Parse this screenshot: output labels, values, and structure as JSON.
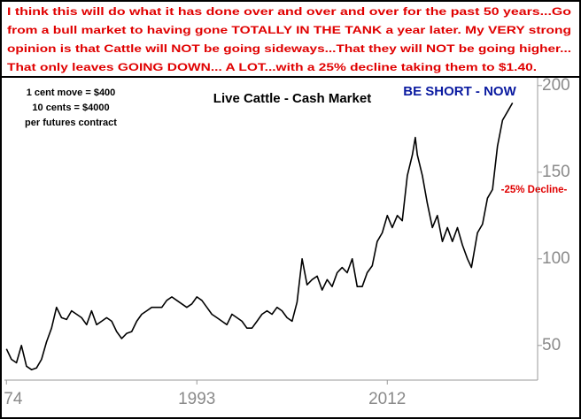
{
  "chart_data": {
    "type": "line",
    "headline": [
      "I think this will do what it has done over and over and over for the past 50 years...Go",
      "from a bull market to having gone TOTALLY IN THE TANK a year later. My VERY strong",
      "opinion is that Cattle will NOT be going sideways...That they will NOT be going higher...",
      "That only leaves GOING DOWN... A LOT...with a 25% decline taking them to $1.40."
    ],
    "title": "Live Cattle - Cash Market",
    "notes": [
      "1 cent move = $400",
      "10 cents = $4000",
      "per futures contract"
    ],
    "callout": "BE SHORT - NOW",
    "decline_label": "-25% Decline-",
    "color": "#000000",
    "x": [
      1974,
      1974.5,
      1975,
      1975.5,
      1976,
      1976.5,
      1977,
      1977.5,
      1978,
      1978.5,
      1979,
      1979.5,
      1980,
      1980.5,
      1981,
      1981.5,
      1982,
      1982.5,
      1983,
      1983.5,
      1984,
      1984.5,
      1985,
      1985.5,
      1986,
      1986.5,
      1987,
      1987.5,
      1988,
      1988.5,
      1989,
      1989.5,
      1990,
      1990.5,
      1991,
      1991.5,
      1992,
      1992.5,
      1993,
      1993.5,
      1994,
      1994.5,
      1995,
      1995.5,
      1996,
      1996.5,
      1997,
      1997.5,
      1998,
      1998.5,
      1999,
      1999.5,
      2000,
      2000.5,
      2001,
      2001.5,
      2002,
      2002.5,
      2003,
      2003.5,
      2004,
      2004.5,
      2005,
      2005.5,
      2006,
      2006.5,
      2007,
      2007.5,
      2008,
      2008.5,
      2009,
      2009.5,
      2010,
      2010.5,
      2011,
      2011.5,
      2012,
      2012.5,
      2013,
      2013.5,
      2014,
      2014.5,
      2014.8,
      2015,
      2015.5,
      2016,
      2016.5,
      2017,
      2017.5,
      2018,
      2018.5,
      2019,
      2019.5,
      2020,
      2020.4,
      2021,
      2021.5,
      2022,
      2022.5,
      2023,
      2023.5,
      2024,
      2024.5
    ],
    "values": [
      48,
      42,
      40,
      50,
      38,
      36,
      37,
      42,
      52,
      60,
      72,
      66,
      65,
      70,
      68,
      66,
      62,
      70,
      62,
      64,
      66,
      64,
      58,
      54,
      57,
      58,
      64,
      68,
      70,
      72,
      72,
      72,
      76,
      78,
      76,
      74,
      72,
      74,
      78,
      76,
      72,
      68,
      66,
      64,
      62,
      68,
      66,
      64,
      60,
      60,
      64,
      68,
      70,
      68,
      72,
      70,
      66,
      64,
      75,
      100,
      85,
      88,
      90,
      82,
      88,
      84,
      92,
      95,
      92,
      100,
      84,
      84,
      92,
      96,
      110,
      115,
      125,
      118,
      125,
      122,
      148,
      160,
      170,
      160,
      148,
      132,
      118,
      125,
      110,
      118,
      110,
      118,
      108,
      100,
      95,
      115,
      120,
      135,
      140,
      165,
      180,
      185,
      190
    ],
    "xlim": [
      1973.8,
      2027
    ],
    "xticks": [
      {
        "value": 1974,
        "label": "74"
      },
      1993,
      2012
    ],
    "ylim": [
      30,
      204.5
    ],
    "yticks": [
      50,
      100,
      150,
      200
    ],
    "grid": false
  }
}
